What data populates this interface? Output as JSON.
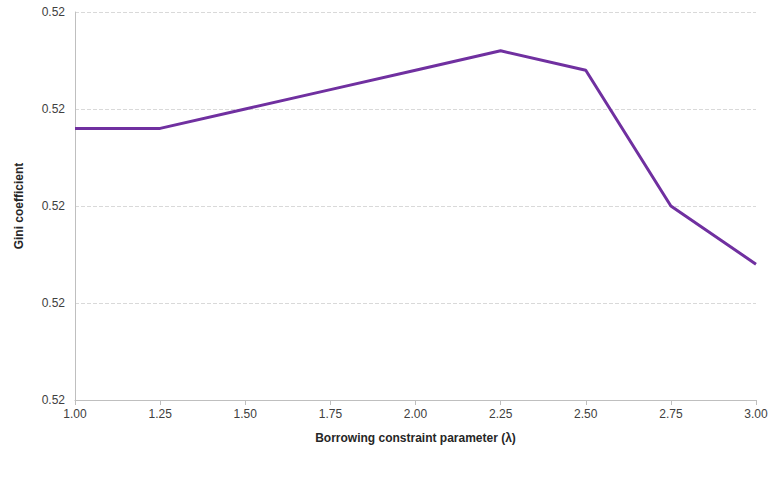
{
  "chart_data": {
    "type": "line",
    "x_label": "Borrowing constraint parameter (λ)",
    "y_label": "Gini coefficient",
    "x": [
      1.0,
      1.25,
      1.5,
      1.75,
      2.0,
      2.25,
      2.5,
      2.75,
      3.0
    ],
    "series": [
      {
        "name": "Gini coefficient",
        "color": "#7030a0",
        "values": [
          0.51988,
          0.51988,
          0.5199,
          0.51992,
          0.51994,
          0.51996,
          0.51994,
          0.5198,
          0.51974
        ]
      }
    ],
    "xlim": [
      1.0,
      3.0
    ],
    "xticks": [
      {
        "value": 1.0,
        "label": "1.00"
      },
      {
        "value": 1.25,
        "label": "1.25"
      },
      {
        "value": 1.5,
        "label": "1.50"
      },
      {
        "value": 1.75,
        "label": "1.75"
      },
      {
        "value": 2.0,
        "label": "2.00"
      },
      {
        "value": 2.25,
        "label": "2.25"
      },
      {
        "value": 2.5,
        "label": "2.50"
      },
      {
        "value": 2.75,
        "label": "2.75"
      },
      {
        "value": 3.0,
        "label": "3.00"
      }
    ],
    "ylim": [
      0.5196,
      0.52
    ],
    "yticks": [
      {
        "value": 0.5196,
        "label": "0.52"
      },
      {
        "value": 0.5197,
        "label": "0.52"
      },
      {
        "value": 0.5198,
        "label": "0.52"
      },
      {
        "value": 0.5199,
        "label": "0.52"
      },
      {
        "value": 0.52,
        "label": "0.52"
      }
    ],
    "grid": true
  }
}
